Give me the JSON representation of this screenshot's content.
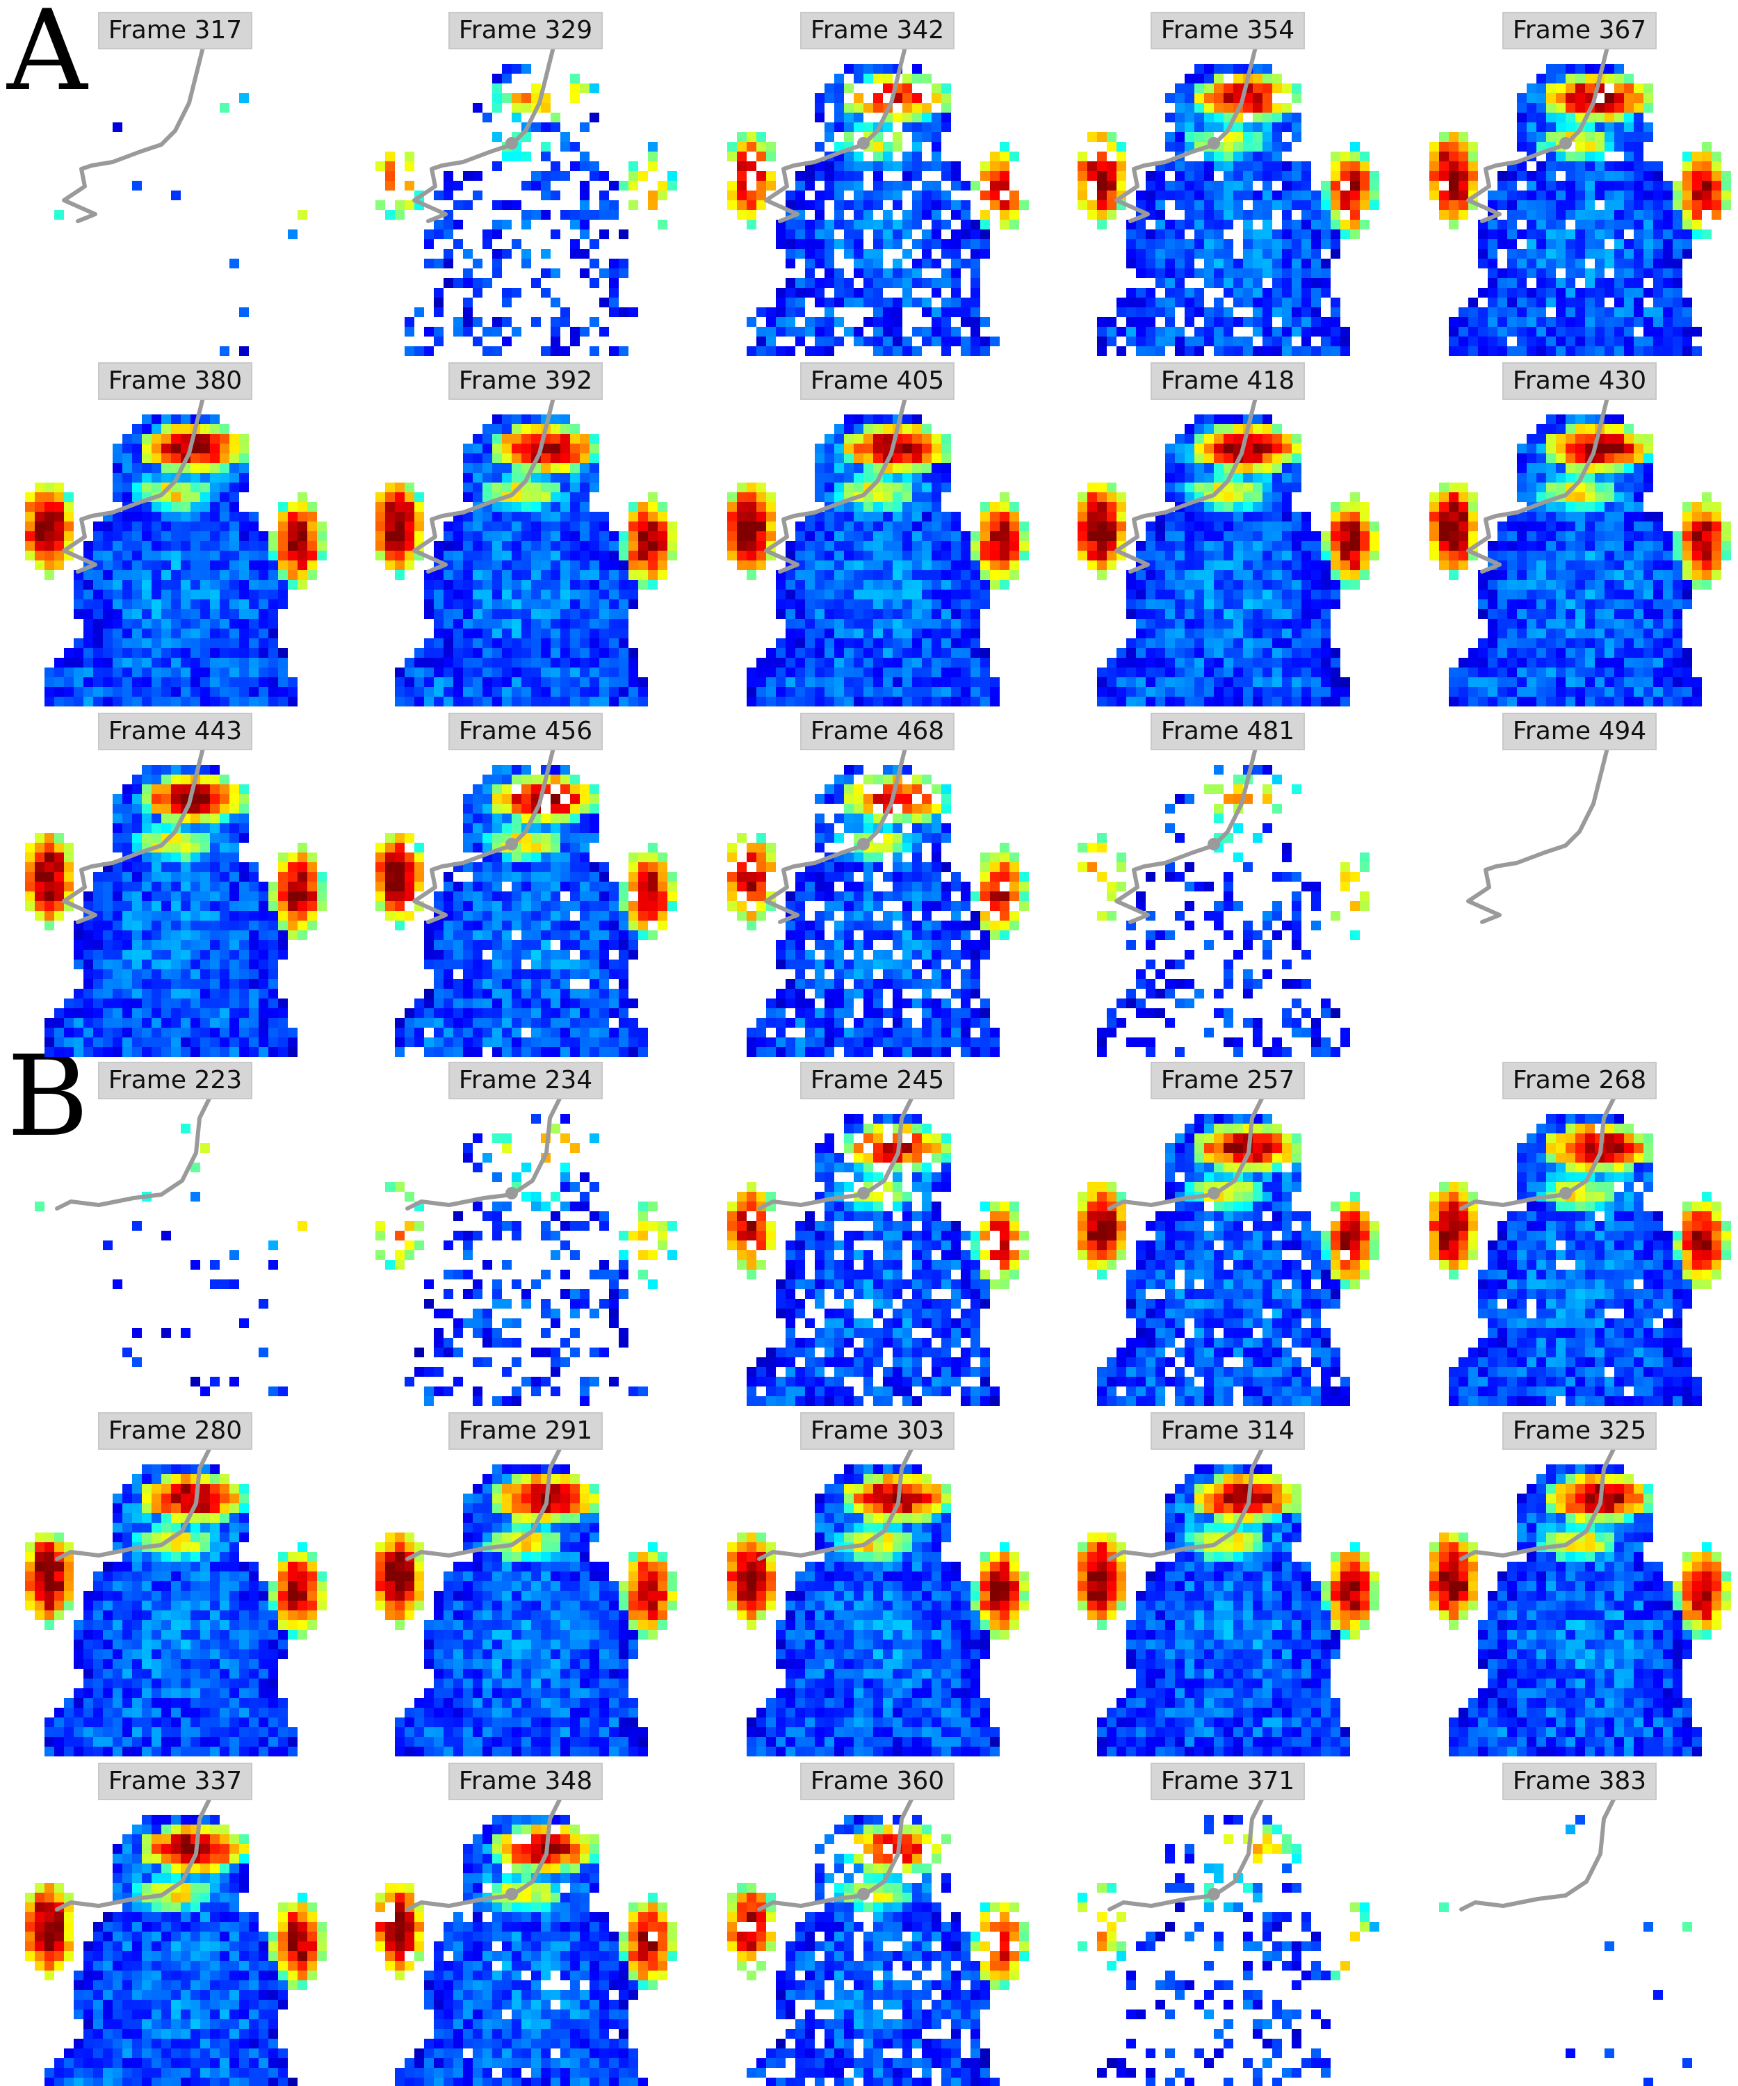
{
  "panels": [
    {
      "letter": "A",
      "rows": [
        [
          "Frame 317",
          "Frame 329",
          "Frame 342",
          "Frame 354",
          "Frame 367"
        ],
        [
          "Frame 380",
          "Frame 392",
          "Frame 405",
          "Frame 418",
          "Frame 430"
        ],
        [
          "Frame 443",
          "Frame 456",
          "Frame 468",
          "Frame 481",
          "Frame 494"
        ]
      ],
      "coverage": [
        0.02,
        0.35,
        0.75,
        0.88,
        0.95,
        1.0,
        1.0,
        1.0,
        1.0,
        1.0,
        1.0,
        0.95,
        0.8,
        0.3,
        0.0
      ],
      "trajectory_style": "zigzag"
    },
    {
      "letter": "B",
      "rows": [
        [
          "Frame 223",
          "Frame 234",
          "Frame 245",
          "Frame 257",
          "Frame 268"
        ],
        [
          "Frame 280",
          "Frame 291",
          "Frame 303",
          "Frame 314",
          "Frame 325"
        ],
        [
          "Frame 337",
          "Frame 348",
          "Frame 360",
          "Frame 371",
          "Frame 383"
        ]
      ],
      "coverage": [
        0.04,
        0.35,
        0.8,
        0.92,
        0.97,
        1.0,
        1.0,
        1.0,
        1.0,
        1.0,
        1.0,
        0.95,
        0.8,
        0.3,
        0.02
      ],
      "trajectory_style": "flat"
    }
  ],
  "colormap": "jet",
  "trajectory_color": "#9a9a9a"
}
